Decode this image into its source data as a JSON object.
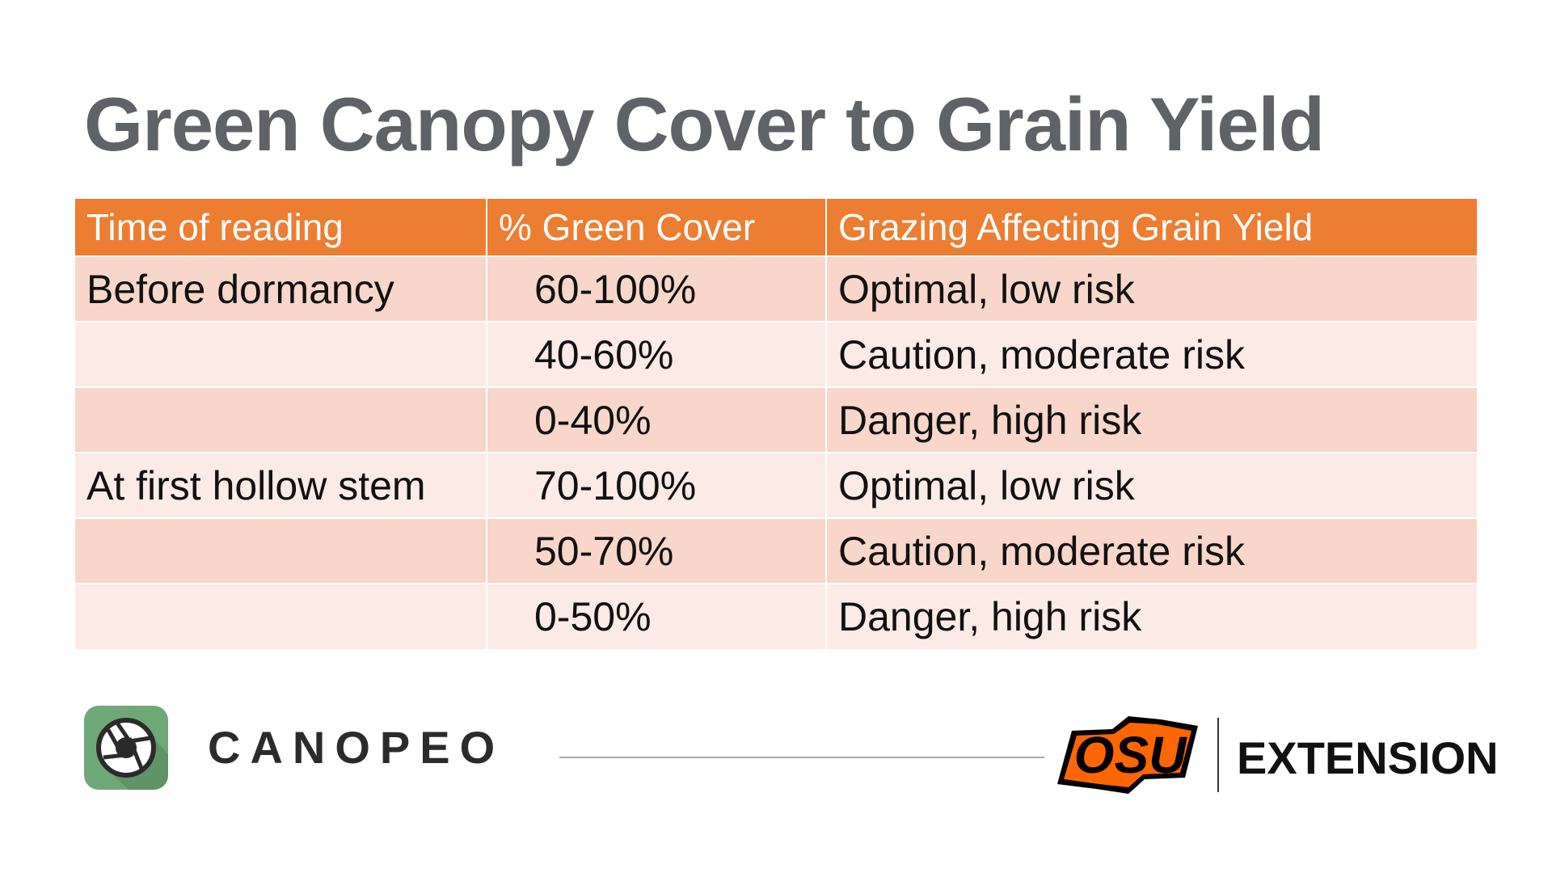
{
  "title": "Green Canopy Cover to Grain Yield",
  "table": {
    "headers": [
      "Time of reading",
      "% Green Cover",
      "Grazing Affecting Grain Yield"
    ],
    "rows": [
      [
        "Before dormancy",
        "60-100%",
        "Optimal, low risk"
      ],
      [
        "",
        "40-60%",
        "Caution, moderate risk"
      ],
      [
        "",
        "0-40%",
        "Danger, high risk"
      ],
      [
        "At first hollow stem",
        "70-100%",
        "Optimal, low risk"
      ],
      [
        "",
        "50-70%",
        "Caution, moderate risk"
      ],
      [
        "",
        "0-50%",
        "Danger, high risk"
      ]
    ]
  },
  "footer": {
    "canopeo_logo": "CANOPEO",
    "osu_logo": "OSU",
    "extension": "EXTENSION"
  },
  "colors": {
    "header": "#ED7D31",
    "row_dark": "#F8D6CA",
    "row_light": "#FBEAE5",
    "osu_orange": "#FF6600"
  }
}
